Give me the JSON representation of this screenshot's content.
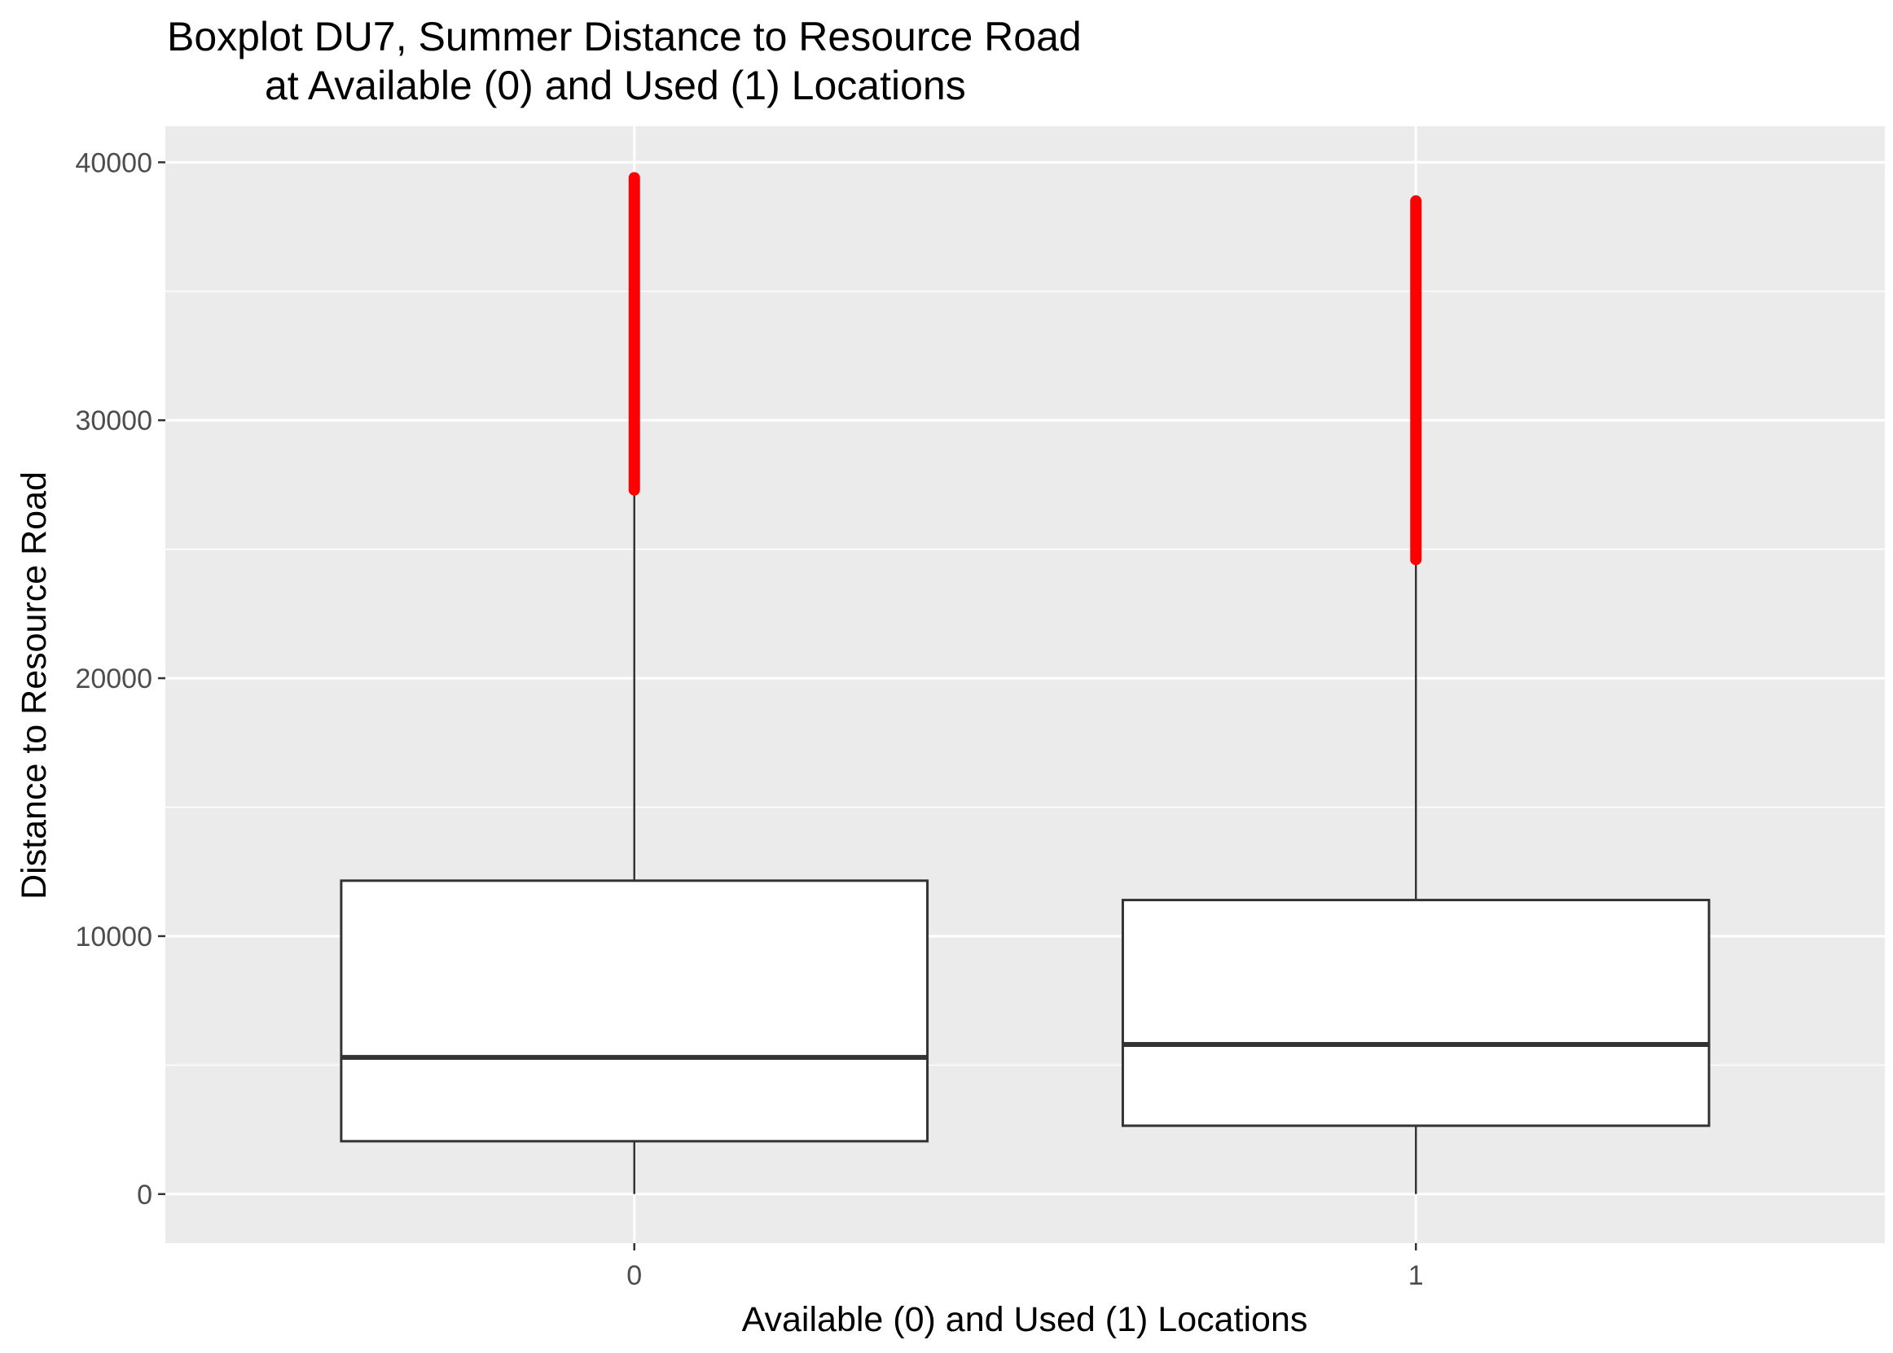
{
  "chart_data": {
    "type": "boxplot",
    "title_lines": [
      "Boxplot DU7, Summer Distance to Resource Road",
      "at Available (0) and Used (1) Locations"
    ],
    "xlabel": "Available (0) and Used (1) Locations",
    "ylabel": "Distance to Resource Road",
    "categories": [
      "0",
      "1"
    ],
    "ylim": [
      -1900,
      41400
    ],
    "y_ticks": [
      0,
      10000,
      20000,
      30000,
      40000
    ],
    "y_tick_labels": [
      "0",
      "10000",
      "20000",
      "30000",
      "40000"
    ],
    "boxes": [
      {
        "category": "0",
        "whisker_low": 0,
        "q1": 2050,
        "median": 5300,
        "q3": 12150,
        "whisker_high": 27300,
        "outlier_min": 27300,
        "outlier_max": 39400
      },
      {
        "category": "1",
        "whisker_low": 0,
        "q1": 2650,
        "median": 5800,
        "q3": 11400,
        "whisker_high": 24600,
        "outlier_min": 24600,
        "outlier_max": 38500
      }
    ],
    "grid": true,
    "outlier_color": "#ff0000",
    "panel_color": "#ebebeb",
    "box_fill": "#ffffff",
    "line_color": "#333333"
  }
}
